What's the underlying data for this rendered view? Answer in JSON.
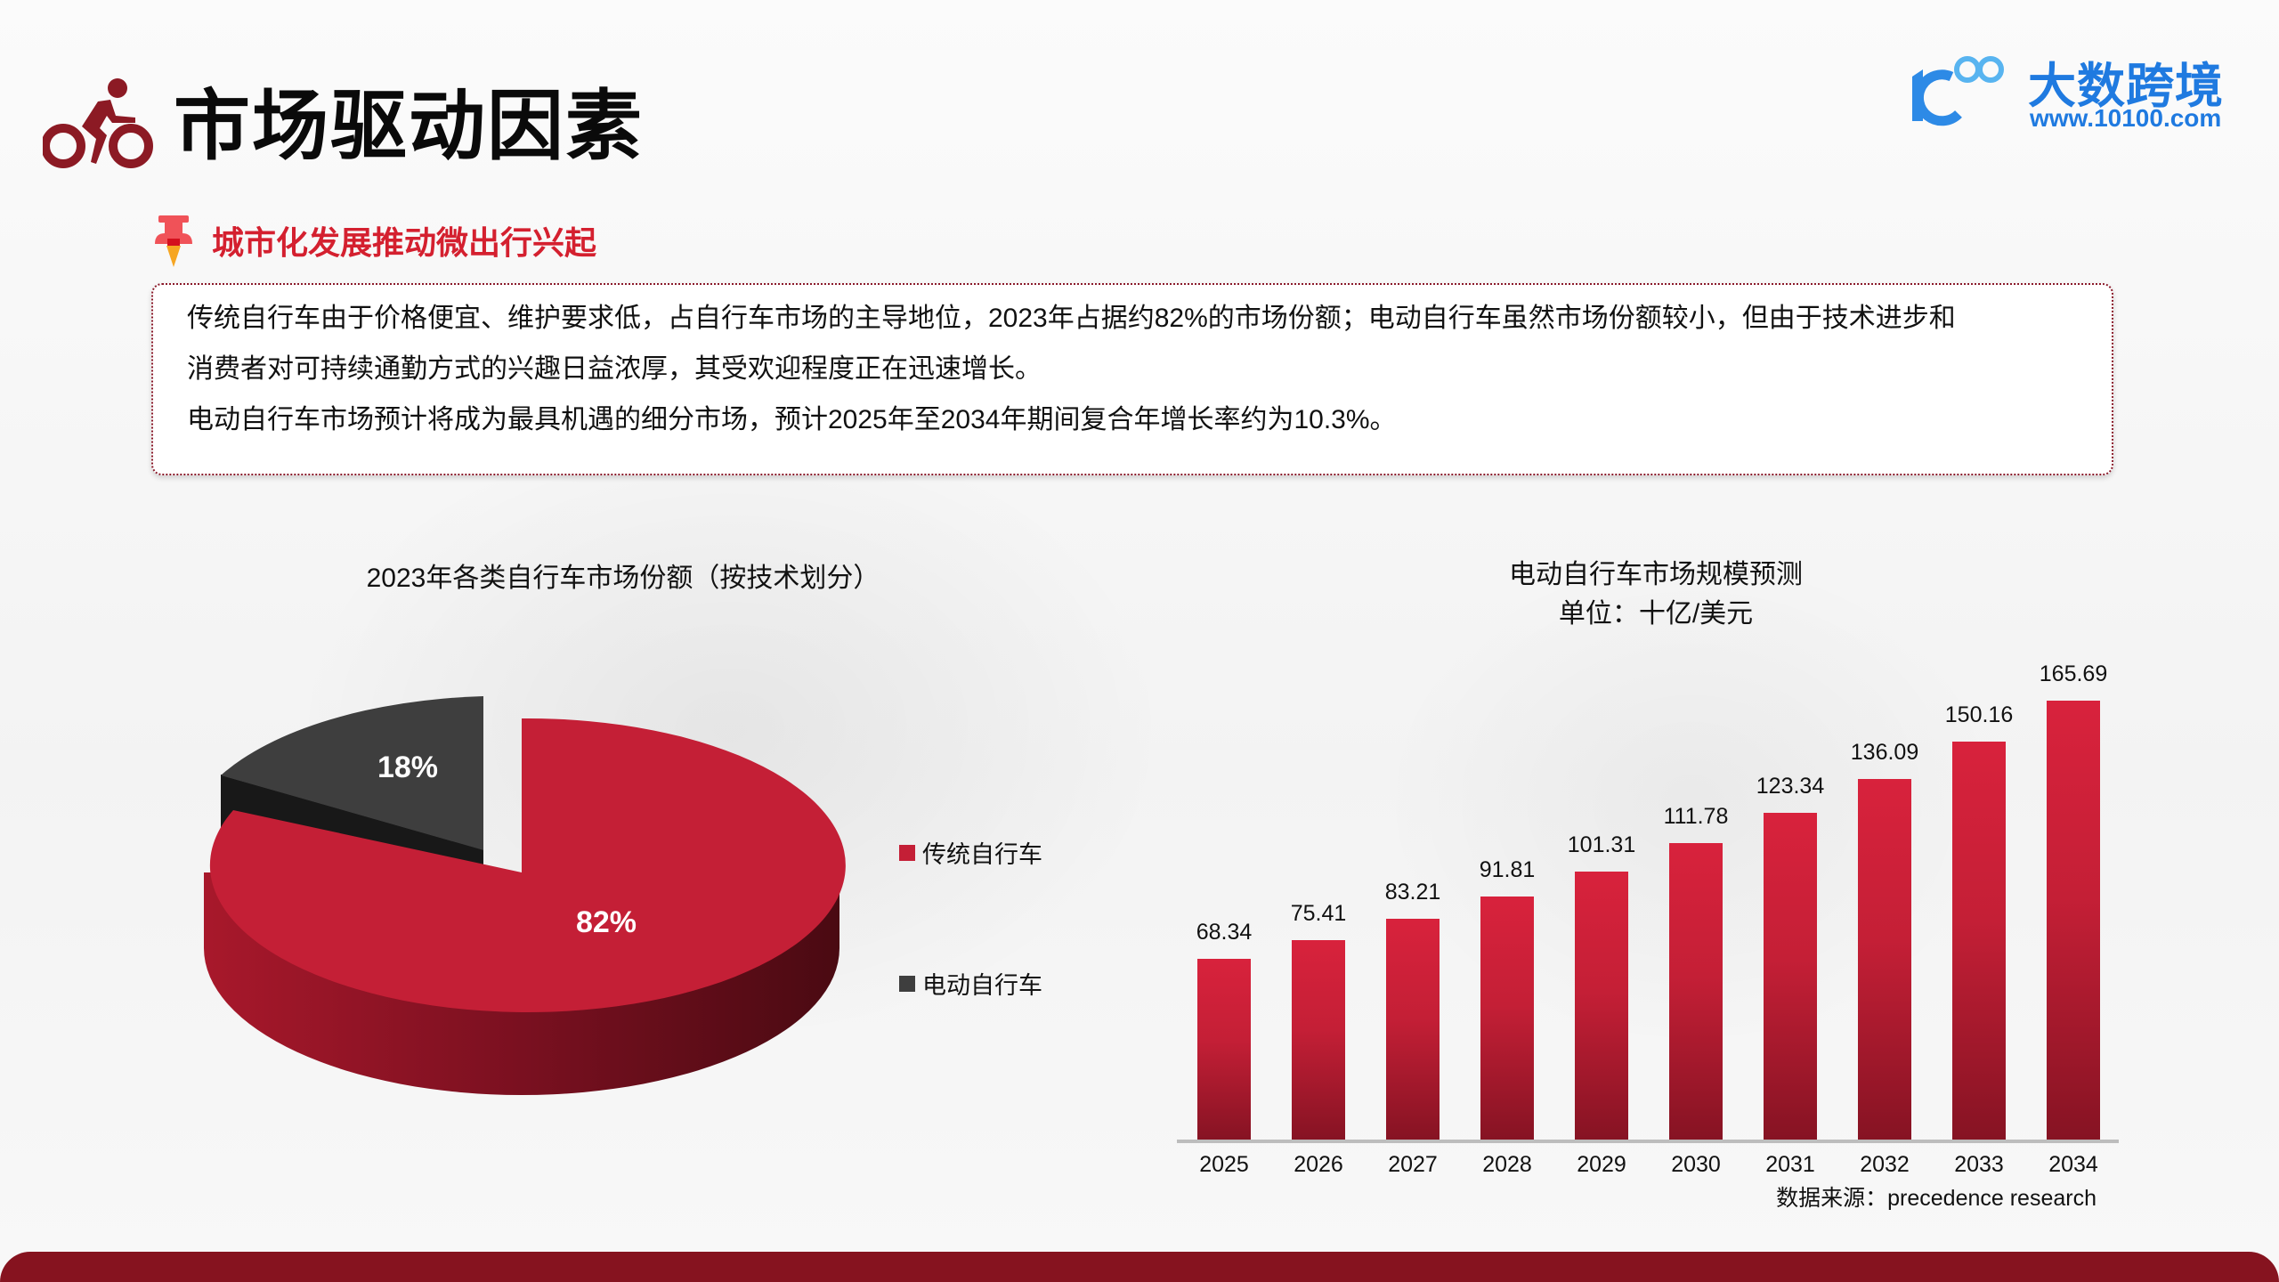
{
  "header": {
    "title": "市场驱动因素",
    "title_icon": "cyclist-icon",
    "logo": {
      "brand": "大数跨境",
      "url": "www.10100.com",
      "mark": "10100"
    }
  },
  "section": {
    "subtitle": "城市化发展推动微出行兴起",
    "subtitle_icon": "pushpin-icon",
    "paragraphs": [
      "传统自行车由于价格便宜、维护要求低，占自行车市场的主导地位，2023年占据约82%的市场份额；电动自行车虽然市场份额较小，但由于技术进步和",
      "消费者对可持续通勤方式的兴趣日益浓厚，其受欢迎程度正在迅速增长。",
      "电动自行车市场预计将成为最具机遇的细分市场，预计2025年至2034年期间复合年增长率约为10.3%。"
    ]
  },
  "colors": {
    "accent_red": "#c41f36",
    "dark_red": "#86131f",
    "dark_gray": "#3e3e3e",
    "brand_blue": "#1f7ae0"
  },
  "chart_data": [
    {
      "type": "pie",
      "title": "2023年各类自行车市场份额（按技术划分）",
      "categories": [
        "传统自行车",
        "电动自行车"
      ],
      "values": [
        82,
        18
      ],
      "labels": [
        "82%",
        "18%"
      ],
      "colors": [
        "#c41f36",
        "#3e3e3e"
      ],
      "legend_position": "right",
      "style": "3d-exploded"
    },
    {
      "type": "bar",
      "title": "电动自行车市场规模预测",
      "subtitle": "单位：十亿/美元",
      "categories": [
        "2025",
        "2026",
        "2027",
        "2028",
        "2029",
        "2030",
        "2031",
        "2032",
        "2033",
        "2034"
      ],
      "values": [
        68.34,
        75.41,
        83.21,
        91.81,
        101.31,
        111.78,
        123.34,
        136.09,
        150.16,
        165.69
      ],
      "value_labels": [
        "68.34",
        "75.41",
        "83.21",
        "91.81",
        "101.31",
        "111.78",
        "123.34",
        "136.09",
        "150.16",
        "165.69"
      ],
      "xlabel": "",
      "ylabel": "",
      "grid": false,
      "source": "数据来源：precedence research"
    }
  ]
}
